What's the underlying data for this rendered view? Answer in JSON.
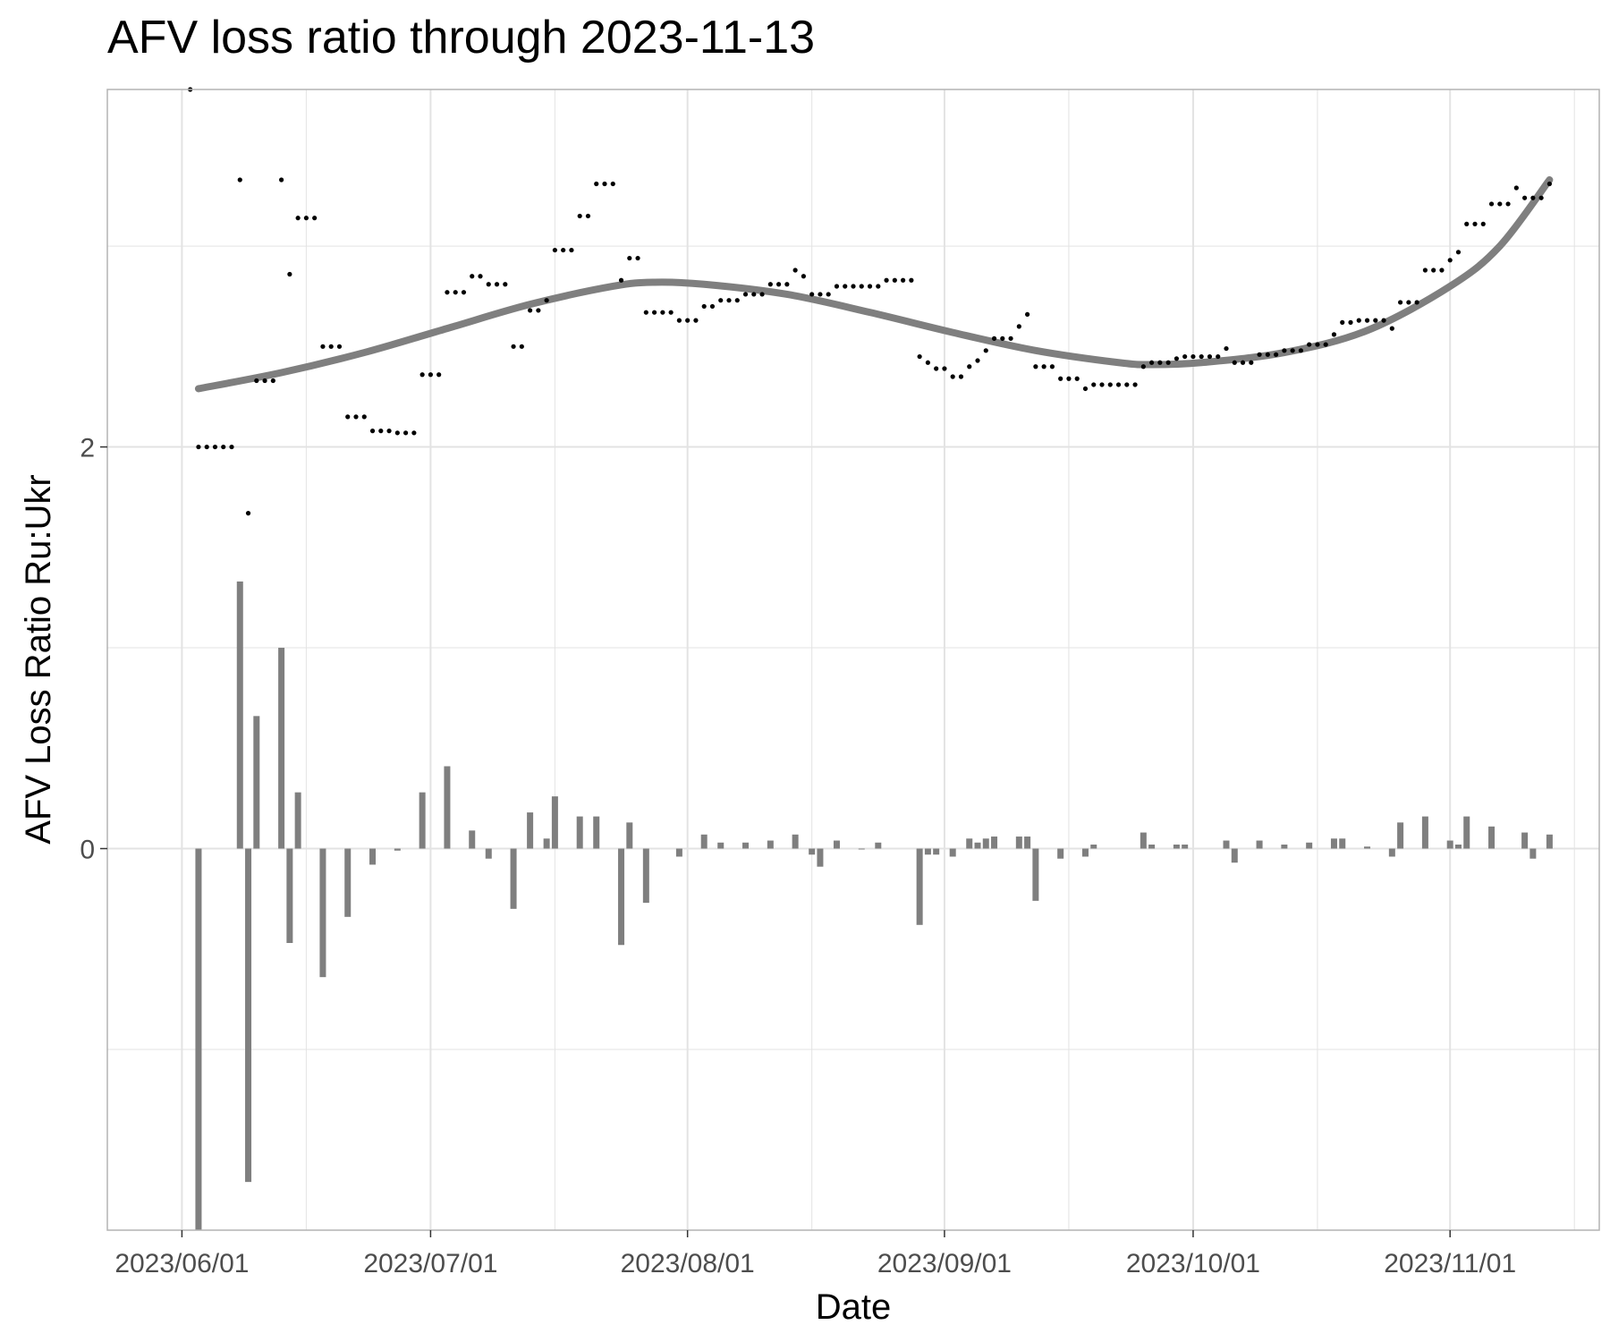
{
  "chart_data": {
    "type": "scatter",
    "title": "AFV loss ratio through 2023-11-13",
    "xlabel": "Date",
    "ylabel": "AFV Loss Ratio Ru:Ukr",
    "xlim": [
      "2023-05-23",
      "2023-11-19"
    ],
    "ylim": [
      -1.9,
      3.78
    ],
    "x_ticks": [
      {
        "date": "2023-06-01",
        "label": "2023/06/01"
      },
      {
        "date": "2023-07-01",
        "label": "2023/07/01"
      },
      {
        "date": "2023-08-01",
        "label": "2023/08/01"
      },
      {
        "date": "2023-09-01",
        "label": "2023/09/01"
      },
      {
        "date": "2023-10-01",
        "label": "2023/10/01"
      },
      {
        "date": "2023-11-01",
        "label": "2023/11/01"
      }
    ],
    "y_ticks": [
      {
        "value": 0,
        "label": "0"
      },
      {
        "value": 2,
        "label": "2"
      }
    ],
    "grid": true,
    "colors": {
      "points": "#000000",
      "bars": "#7f7f7f",
      "trend": "#7f7f7f",
      "grid": "#e3e3e3",
      "panel_border": "#b3b3b3"
    },
    "series": [
      {
        "type": "scatter",
        "points": [
          [
            "2023-06-02",
            3.78
          ],
          [
            "2023-06-03",
            2.0
          ],
          [
            "2023-06-04",
            2.0
          ],
          [
            "2023-06-05",
            2.0
          ],
          [
            "2023-06-06",
            2.0
          ],
          [
            "2023-06-07",
            2.0
          ],
          [
            "2023-06-08",
            3.33
          ],
          [
            "2023-06-09",
            1.67
          ],
          [
            "2023-06-10",
            2.33
          ],
          [
            "2023-06-11",
            2.33
          ],
          [
            "2023-06-12",
            2.33
          ],
          [
            "2023-06-13",
            3.33
          ],
          [
            "2023-06-14",
            2.86
          ],
          [
            "2023-06-15",
            3.14
          ],
          [
            "2023-06-16",
            3.14
          ],
          [
            "2023-06-17",
            3.14
          ],
          [
            "2023-06-18",
            2.5
          ],
          [
            "2023-06-19",
            2.5
          ],
          [
            "2023-06-20",
            2.5
          ],
          [
            "2023-06-21",
            2.15
          ],
          [
            "2023-06-22",
            2.15
          ],
          [
            "2023-06-23",
            2.15
          ],
          [
            "2023-06-24",
            2.08
          ],
          [
            "2023-06-25",
            2.08
          ],
          [
            "2023-06-26",
            2.08
          ],
          [
            "2023-06-27",
            2.07
          ],
          [
            "2023-06-28",
            2.07
          ],
          [
            "2023-06-29",
            2.07
          ],
          [
            "2023-06-30",
            2.36
          ],
          [
            "2023-07-01",
            2.36
          ],
          [
            "2023-07-02",
            2.36
          ],
          [
            "2023-07-03",
            2.77
          ],
          [
            "2023-07-04",
            2.77
          ],
          [
            "2023-07-05",
            2.77
          ],
          [
            "2023-07-06",
            2.85
          ],
          [
            "2023-07-07",
            2.85
          ],
          [
            "2023-07-08",
            2.81
          ],
          [
            "2023-07-09",
            2.81
          ],
          [
            "2023-07-10",
            2.81
          ],
          [
            "2023-07-11",
            2.5
          ],
          [
            "2023-07-12",
            2.5
          ],
          [
            "2023-07-13",
            2.68
          ],
          [
            "2023-07-14",
            2.68
          ],
          [
            "2023-07-15",
            2.73
          ],
          [
            "2023-07-16",
            2.98
          ],
          [
            "2023-07-17",
            2.98
          ],
          [
            "2023-07-18",
            2.98
          ],
          [
            "2023-07-19",
            3.15
          ],
          [
            "2023-07-20",
            3.15
          ],
          [
            "2023-07-21",
            3.31
          ],
          [
            "2023-07-22",
            3.31
          ],
          [
            "2023-07-23",
            3.31
          ],
          [
            "2023-07-24",
            2.83
          ],
          [
            "2023-07-25",
            2.94
          ],
          [
            "2023-07-26",
            2.94
          ],
          [
            "2023-07-27",
            2.67
          ],
          [
            "2023-07-28",
            2.67
          ],
          [
            "2023-07-29",
            2.67
          ],
          [
            "2023-07-30",
            2.67
          ],
          [
            "2023-07-31",
            2.63
          ],
          [
            "2023-08-01",
            2.63
          ],
          [
            "2023-08-02",
            2.63
          ],
          [
            "2023-08-03",
            2.7
          ],
          [
            "2023-08-04",
            2.7
          ],
          [
            "2023-08-05",
            2.73
          ],
          [
            "2023-08-06",
            2.73
          ],
          [
            "2023-08-07",
            2.73
          ],
          [
            "2023-08-08",
            2.76
          ],
          [
            "2023-08-09",
            2.76
          ],
          [
            "2023-08-10",
            2.76
          ],
          [
            "2023-08-11",
            2.81
          ],
          [
            "2023-08-12",
            2.81
          ],
          [
            "2023-08-13",
            2.81
          ],
          [
            "2023-08-14",
            2.88
          ],
          [
            "2023-08-15",
            2.85
          ],
          [
            "2023-08-16",
            2.76
          ],
          [
            "2023-08-17",
            2.76
          ],
          [
            "2023-08-18",
            2.76
          ],
          [
            "2023-08-19",
            2.8
          ],
          [
            "2023-08-20",
            2.8
          ],
          [
            "2023-08-21",
            2.8
          ],
          [
            "2023-08-22",
            2.8
          ],
          [
            "2023-08-23",
            2.8
          ],
          [
            "2023-08-24",
            2.8
          ],
          [
            "2023-08-25",
            2.83
          ],
          [
            "2023-08-26",
            2.83
          ],
          [
            "2023-08-27",
            2.83
          ],
          [
            "2023-08-28",
            2.83
          ],
          [
            "2023-08-29",
            2.45
          ],
          [
            "2023-08-30",
            2.42
          ],
          [
            "2023-08-31",
            2.39
          ],
          [
            "2023-09-01",
            2.39
          ],
          [
            "2023-09-02",
            2.35
          ],
          [
            "2023-09-03",
            2.35
          ],
          [
            "2023-09-04",
            2.4
          ],
          [
            "2023-09-05",
            2.43
          ],
          [
            "2023-09-06",
            2.48
          ],
          [
            "2023-09-07",
            2.54
          ],
          [
            "2023-09-08",
            2.54
          ],
          [
            "2023-09-09",
            2.54
          ],
          [
            "2023-09-10",
            2.6
          ],
          [
            "2023-09-11",
            2.66
          ],
          [
            "2023-09-12",
            2.4
          ],
          [
            "2023-09-13",
            2.4
          ],
          [
            "2023-09-14",
            2.4
          ],
          [
            "2023-09-15",
            2.34
          ],
          [
            "2023-09-16",
            2.34
          ],
          [
            "2023-09-17",
            2.34
          ],
          [
            "2023-09-18",
            2.29
          ],
          [
            "2023-09-19",
            2.31
          ],
          [
            "2023-09-20",
            2.31
          ],
          [
            "2023-09-21",
            2.31
          ],
          [
            "2023-09-22",
            2.31
          ],
          [
            "2023-09-23",
            2.31
          ],
          [
            "2023-09-24",
            2.31
          ],
          [
            "2023-09-25",
            2.4
          ],
          [
            "2023-09-26",
            2.42
          ],
          [
            "2023-09-27",
            2.42
          ],
          [
            "2023-09-28",
            2.42
          ],
          [
            "2023-09-29",
            2.44
          ],
          [
            "2023-09-30",
            2.45
          ],
          [
            "2023-10-01",
            2.45
          ],
          [
            "2023-10-02",
            2.45
          ],
          [
            "2023-10-03",
            2.45
          ],
          [
            "2023-10-04",
            2.45
          ],
          [
            "2023-10-05",
            2.49
          ],
          [
            "2023-10-06",
            2.42
          ],
          [
            "2023-10-07",
            2.42
          ],
          [
            "2023-10-08",
            2.42
          ],
          [
            "2023-10-09",
            2.46
          ],
          [
            "2023-10-10",
            2.46
          ],
          [
            "2023-10-11",
            2.46
          ],
          [
            "2023-10-12",
            2.48
          ],
          [
            "2023-10-13",
            2.48
          ],
          [
            "2023-10-14",
            2.48
          ],
          [
            "2023-10-15",
            2.51
          ],
          [
            "2023-10-16",
            2.51
          ],
          [
            "2023-10-17",
            2.51
          ],
          [
            "2023-10-18",
            2.56
          ],
          [
            "2023-10-19",
            2.62
          ],
          [
            "2023-10-20",
            2.62
          ],
          [
            "2023-10-21",
            2.63
          ],
          [
            "2023-10-22",
            2.63
          ],
          [
            "2023-10-23",
            2.63
          ],
          [
            "2023-10-24",
            2.63
          ],
          [
            "2023-10-25",
            2.59
          ],
          [
            "2023-10-26",
            2.72
          ],
          [
            "2023-10-27",
            2.72
          ],
          [
            "2023-10-28",
            2.72
          ],
          [
            "2023-10-29",
            2.88
          ],
          [
            "2023-10-30",
            2.88
          ],
          [
            "2023-10-31",
            2.88
          ],
          [
            "2023-11-01",
            2.93
          ],
          [
            "2023-11-02",
            2.97
          ],
          [
            "2023-11-03",
            3.11
          ],
          [
            "2023-11-04",
            3.11
          ],
          [
            "2023-11-05",
            3.11
          ],
          [
            "2023-11-06",
            3.21
          ],
          [
            "2023-11-07",
            3.21
          ],
          [
            "2023-11-08",
            3.21
          ],
          [
            "2023-11-09",
            3.29
          ],
          [
            "2023-11-10",
            3.24
          ],
          [
            "2023-11-11",
            3.24
          ],
          [
            "2023-11-12",
            3.24
          ],
          [
            "2023-11-13",
            3.31
          ]
        ]
      },
      {
        "type": "bar",
        "points": [
          [
            "2023-06-03",
            -2.05
          ],
          [
            "2023-06-08",
            1.33
          ],
          [
            "2023-06-09",
            -1.66
          ],
          [
            "2023-06-10",
            0.66
          ],
          [
            "2023-06-13",
            1.0
          ],
          [
            "2023-06-14",
            -0.47
          ],
          [
            "2023-06-15",
            0.28
          ],
          [
            "2023-06-18",
            -0.64
          ],
          [
            "2023-06-21",
            -0.34
          ],
          [
            "2023-06-24",
            -0.08
          ],
          [
            "2023-06-27",
            -0.01
          ],
          [
            "2023-06-30",
            0.28
          ],
          [
            "2023-07-03",
            0.41
          ],
          [
            "2023-07-06",
            0.09
          ],
          [
            "2023-07-08",
            -0.05
          ],
          [
            "2023-07-11",
            -0.3
          ],
          [
            "2023-07-13",
            0.18
          ],
          [
            "2023-07-15",
            0.05
          ],
          [
            "2023-07-16",
            0.26
          ],
          [
            "2023-07-19",
            0.16
          ],
          [
            "2023-07-21",
            0.16
          ],
          [
            "2023-07-24",
            -0.48
          ],
          [
            "2023-07-25",
            0.13
          ],
          [
            "2023-07-27",
            -0.27
          ],
          [
            "2023-07-31",
            -0.04
          ],
          [
            "2023-08-03",
            0.07
          ],
          [
            "2023-08-05",
            0.03
          ],
          [
            "2023-08-08",
            0.03
          ],
          [
            "2023-08-11",
            0.04
          ],
          [
            "2023-08-14",
            0.07
          ],
          [
            "2023-08-16",
            -0.03
          ],
          [
            "2023-08-17",
            -0.09
          ],
          [
            "2023-08-19",
            0.04
          ],
          [
            "2023-08-22",
            0.0
          ],
          [
            "2023-08-24",
            0.03
          ],
          [
            "2023-08-29",
            -0.38
          ],
          [
            "2023-08-30",
            -0.03
          ],
          [
            "2023-08-31",
            -0.03
          ],
          [
            "2023-09-02",
            -0.04
          ],
          [
            "2023-09-04",
            0.05
          ],
          [
            "2023-09-05",
            0.03
          ],
          [
            "2023-09-06",
            0.05
          ],
          [
            "2023-09-07",
            0.06
          ],
          [
            "2023-09-10",
            0.06
          ],
          [
            "2023-09-11",
            0.06
          ],
          [
            "2023-09-12",
            -0.26
          ],
          [
            "2023-09-15",
            -0.05
          ],
          [
            "2023-09-18",
            -0.04
          ],
          [
            "2023-09-19",
            0.02
          ],
          [
            "2023-09-25",
            0.08
          ],
          [
            "2023-09-26",
            0.02
          ],
          [
            "2023-09-29",
            0.02
          ],
          [
            "2023-09-30",
            0.02
          ],
          [
            "2023-10-05",
            0.04
          ],
          [
            "2023-10-06",
            -0.07
          ],
          [
            "2023-10-09",
            0.04
          ],
          [
            "2023-10-12",
            0.02
          ],
          [
            "2023-10-15",
            0.03
          ],
          [
            "2023-10-18",
            0.05
          ],
          [
            "2023-10-19",
            0.05
          ],
          [
            "2023-10-22",
            0.01
          ],
          [
            "2023-10-25",
            -0.04
          ],
          [
            "2023-10-26",
            0.13
          ],
          [
            "2023-10-29",
            0.16
          ],
          [
            "2023-11-01",
            0.04
          ],
          [
            "2023-11-02",
            0.02
          ],
          [
            "2023-11-03",
            0.16
          ],
          [
            "2023-11-06",
            0.11
          ],
          [
            "2023-11-10",
            0.08
          ],
          [
            "2023-11-11",
            -0.05
          ],
          [
            "2023-11-13",
            0.07
          ]
        ]
      },
      {
        "type": "line",
        "points": [
          [
            "2023-06-03",
            2.29
          ],
          [
            "2023-06-13",
            2.37
          ],
          [
            "2023-06-23",
            2.47
          ],
          [
            "2023-07-03",
            2.59
          ],
          [
            "2023-07-13",
            2.71
          ],
          [
            "2023-07-23",
            2.8
          ],
          [
            "2023-07-28",
            2.82
          ],
          [
            "2023-08-03",
            2.81
          ],
          [
            "2023-08-13",
            2.76
          ],
          [
            "2023-08-23",
            2.67
          ],
          [
            "2023-09-02",
            2.57
          ],
          [
            "2023-09-12",
            2.48
          ],
          [
            "2023-09-22",
            2.42
          ],
          [
            "2023-09-26",
            2.41
          ],
          [
            "2023-10-02",
            2.42
          ],
          [
            "2023-10-12",
            2.47
          ],
          [
            "2023-10-22",
            2.58
          ],
          [
            "2023-11-01",
            2.8
          ],
          [
            "2023-11-07",
            3.0
          ],
          [
            "2023-11-13",
            3.33
          ]
        ]
      }
    ]
  }
}
